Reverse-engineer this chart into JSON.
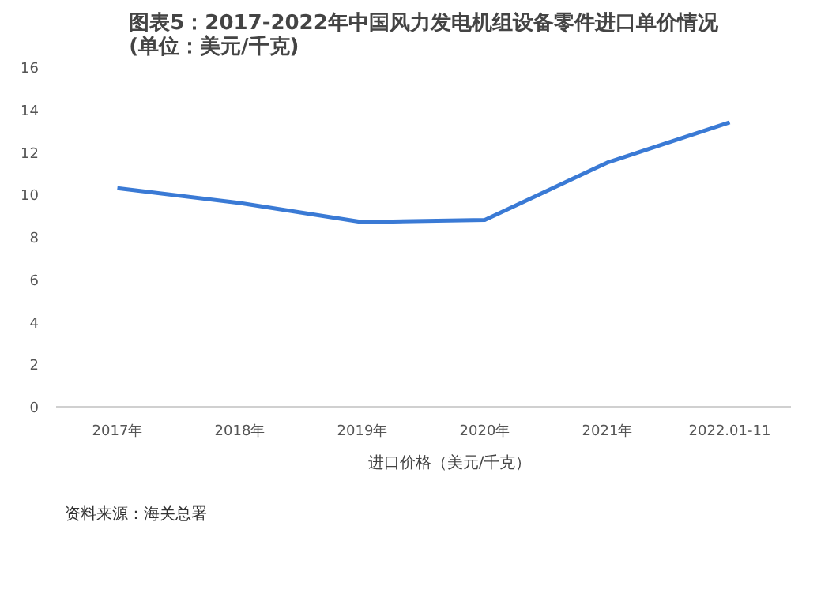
{
  "chart_data": {
    "type": "line",
    "title": "图表5：2017-2022年中国风力发电机组设备零件进口单价情况(单位：美元/千克)",
    "categories": [
      "2017年",
      "2018年",
      "2019年",
      "2020年",
      "2021年",
      "2022.01-11"
    ],
    "series": [
      {
        "name": "进口价格（美元/千克）",
        "color": "#3a7ad5",
        "values": [
          10.3,
          9.6,
          8.7,
          8.8,
          11.5,
          13.4
        ]
      }
    ],
    "ylim": [
      0,
      16
    ],
    "yticks": [
      0,
      2,
      4,
      6,
      8,
      10,
      12,
      14,
      16
    ],
    "grid": false,
    "legend": "bottom",
    "marker": "none",
    "line_style": "solid",
    "annotations": [
      "资料来源：海关总署"
    ]
  }
}
